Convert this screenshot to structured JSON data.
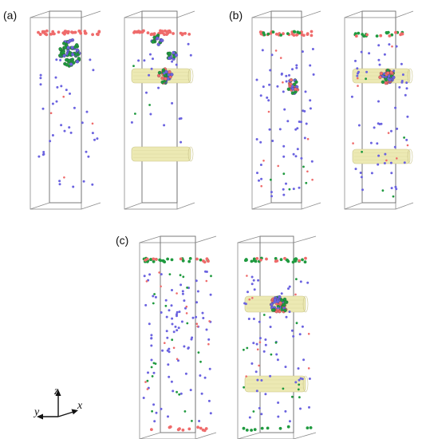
{
  "figure": {
    "panels": [
      {
        "label": "(a)"
      },
      {
        "label": "(b)"
      },
      {
        "label": "(c)"
      }
    ],
    "axes": {
      "z": "z",
      "y": "y",
      "x": "x"
    },
    "colors": {
      "ion_blue": "#6b63e0",
      "ion_red": "#ef6b6b",
      "ion_green": "#1f9a3f",
      "nanotube_fill": "#ece9b3",
      "nanotube_stroke": "#c9c48a",
      "box_line": "#8a8a8a"
    }
  }
}
